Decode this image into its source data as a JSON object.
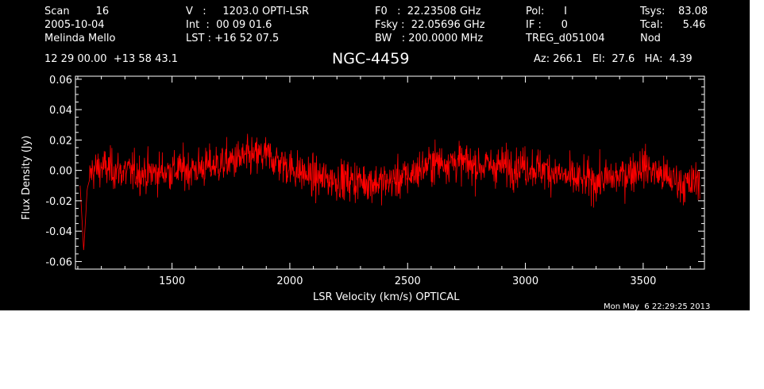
{
  "header": {
    "col1": [
      "Scan        16",
      "2005-10-04",
      "Melinda Mello"
    ],
    "col2": [
      "V   :     1203.0 OPTI-LSR",
      "Int  :  00 09 01.6",
      "LST : +16 52 07.5"
    ],
    "col3": [
      "F0   :  22.23508 GHz",
      "Fsky :  22.05696 GHz",
      "BW   : 200.0000 MHz"
    ],
    "col4": [
      "Pol:      I",
      "IF :      0",
      "TREG_d051004"
    ],
    "col5": [
      "Tsys:    83.08",
      "Tcal:      5.46",
      "Nod"
    ],
    "coords": "12 29 00.00  +13 58 43.1",
    "source": "NGC-4459",
    "pointing": "Az: 266.1   El:  27.6   HA:  4.39",
    "timestamp": "Mon May  6 22:29:25 2013"
  },
  "colors": {
    "background": "#000000",
    "trace": "#ff0000",
    "axes": "#ffffff"
  },
  "chart_data": {
    "type": "line",
    "title": "NGC-4459",
    "xlabel": "LSR Velocity (km/s) OPTICAL",
    "ylabel": "Flux Density (Jy)",
    "xlim": [
      1090,
      3760
    ],
    "ylim": [
      -0.065,
      0.062
    ],
    "xticks": [
      1500,
      2000,
      2500,
      3000,
      3500
    ],
    "xtick_labels": [
      "1500",
      "2000",
      "2500",
      "3000",
      "3500"
    ],
    "yticks": [
      -0.06,
      -0.04,
      -0.02,
      0.0,
      0.02,
      0.04,
      0.06
    ],
    "ytick_labels": [
      "-0.06",
      "-0.04",
      "-0.02",
      "0.00",
      "0.02",
      "0.04",
      "0.06"
    ],
    "series": [
      {
        "x": [
          1110,
          1125,
          1140,
          1160,
          1200,
          1300,
          1400,
          1500,
          1600,
          1700,
          1800,
          1900,
          2000,
          2100,
          2200,
          2300,
          2400,
          2500,
          2600,
          2700,
          2800,
          2900,
          3000,
          3100,
          3200,
          3300,
          3400,
          3500,
          3600,
          3700,
          3740
        ],
        "y": [
          -0.01,
          -0.053,
          -0.012,
          0.0,
          0.002,
          -0.001,
          -0.002,
          0.0,
          0.001,
          0.004,
          0.008,
          0.01,
          0.002,
          -0.005,
          -0.006,
          -0.007,
          -0.008,
          -0.004,
          0.005,
          0.006,
          0.003,
          0.003,
          0.003,
          0.0,
          -0.006,
          -0.007,
          -0.004,
          0.003,
          -0.005,
          -0.01,
          -0.004
        ],
        "noise_rms": 0.011,
        "channels": 1600
      }
    ]
  }
}
